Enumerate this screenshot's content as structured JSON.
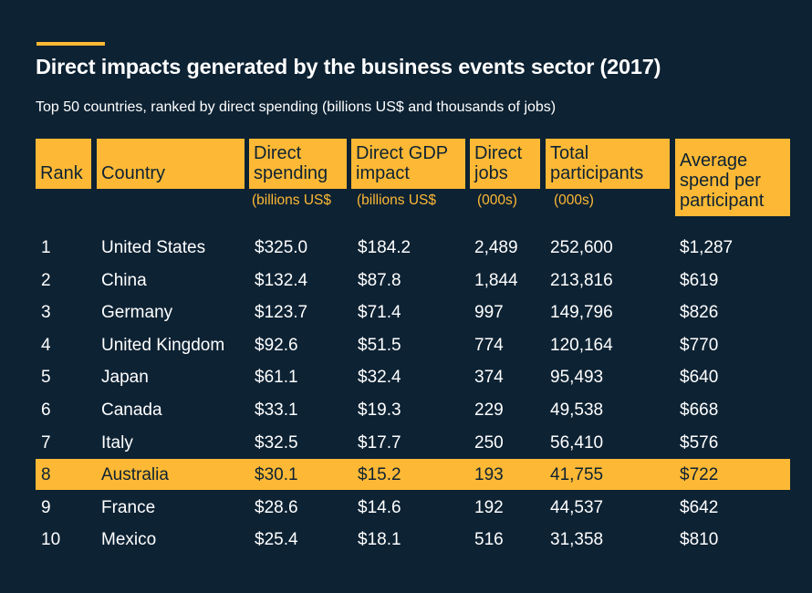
{
  "title": "Direct impacts generated by the business events sector (2017)",
  "subtitle": "Top 50 countries, ranked by direct spending (billions US$ and thousands of jobs)",
  "colors": {
    "background": "#0d2233",
    "accent": "#fdb935",
    "text": "#ffffff"
  },
  "chart_data": {
    "type": "table",
    "title": "Direct impacts generated by the business events sector (2017)",
    "columns": [
      {
        "label": "Rank",
        "unit": ""
      },
      {
        "label": "Country",
        "unit": ""
      },
      {
        "label": "Direct spending",
        "unit": "(billions US$"
      },
      {
        "label": "Direct GDP impact",
        "unit": "(billions US$"
      },
      {
        "label": "Direct jobs",
        "unit": "(000s)"
      },
      {
        "label": "Total participants",
        "unit": "(000s)"
      },
      {
        "label": "Average spend per participant",
        "unit": ""
      }
    ],
    "highlighted_rank": "8",
    "rows": [
      [
        "1",
        "United States",
        "$325.0",
        "$184.2",
        "2,489",
        "252,600",
        "$1,287"
      ],
      [
        "2",
        "China",
        "$132.4",
        "$87.8",
        "1,844",
        "213,816",
        "$619"
      ],
      [
        "3",
        "Germany",
        "$123.7",
        "$71.4",
        "997",
        "149,796",
        "$826"
      ],
      [
        "4",
        "United Kingdom",
        "$92.6",
        "$51.5",
        "774",
        "120,164",
        "$770"
      ],
      [
        "5",
        "Japan",
        "$61.1",
        "$32.4",
        "374",
        "95,493",
        "$640"
      ],
      [
        "6",
        "Canada",
        "$33.1",
        "$19.3",
        "229",
        "49,538",
        "$668"
      ],
      [
        "7",
        "Italy",
        "$32.5",
        "$17.7",
        "250",
        "56,410",
        "$576"
      ],
      [
        "8",
        "Australia",
        "$30.1",
        "$15.2",
        "193",
        "41,755",
        "$722"
      ],
      [
        "9",
        "France",
        "$28.6",
        "$14.6",
        "192",
        "44,537",
        "$642"
      ],
      [
        "10",
        "Mexico",
        "$25.4",
        "$18.1",
        "516",
        "31,358",
        "$810"
      ]
    ]
  }
}
